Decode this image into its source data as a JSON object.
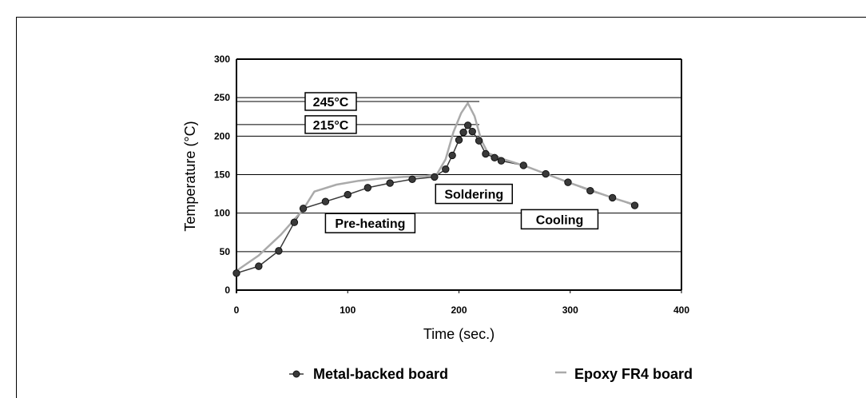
{
  "figure_heading": "",
  "chart_data": {
    "type": "line",
    "xlabel": "Time (sec.)",
    "ylabel": "Temperature (°C)",
    "xlim": [
      0,
      400
    ],
    "ylim": [
      0,
      300
    ],
    "xticks": [
      0,
      100,
      200,
      300,
      400
    ],
    "yticks": [
      0,
      50,
      100,
      150,
      200,
      250,
      300
    ],
    "grid": "horizontal",
    "legend_position": "bottom",
    "series": [
      {
        "name": "Metal-backed board",
        "color": "#3a3a3a",
        "marker": "circle",
        "points": [
          [
            0,
            22
          ],
          [
            20,
            31
          ],
          [
            38,
            51
          ],
          [
            52,
            88
          ],
          [
            60,
            106
          ],
          [
            80,
            115
          ],
          [
            100,
            124
          ],
          [
            118,
            133
          ],
          [
            138,
            139
          ],
          [
            158,
            144
          ],
          [
            178,
            147
          ],
          [
            188,
            157
          ],
          [
            194,
            175
          ],
          [
            200,
            195
          ],
          [
            204,
            205
          ],
          [
            208,
            214
          ],
          [
            212,
            206
          ],
          [
            218,
            194
          ],
          [
            224,
            177
          ],
          [
            232,
            172
          ],
          [
            238,
            168
          ],
          [
            258,
            162
          ],
          [
            278,
            151
          ],
          [
            298,
            140
          ],
          [
            318,
            129
          ],
          [
            338,
            120
          ],
          [
            358,
            110
          ]
        ]
      },
      {
        "name": "Epoxy FR4 board",
        "color": "#aaaaaa",
        "marker": "none",
        "points": [
          [
            0,
            25
          ],
          [
            20,
            45
          ],
          [
            40,
            72
          ],
          [
            60,
            105
          ],
          [
            70,
            128
          ],
          [
            90,
            137
          ],
          [
            110,
            142
          ],
          [
            130,
            145
          ],
          [
            150,
            147
          ],
          [
            170,
            148
          ],
          [
            180,
            150
          ],
          [
            188,
            170
          ],
          [
            195,
            205
          ],
          [
            202,
            230
          ],
          [
            208,
            243
          ],
          [
            214,
            226
          ],
          [
            220,
            195
          ],
          [
            226,
            178
          ],
          [
            240,
            170
          ],
          [
            260,
            161
          ],
          [
            280,
            150
          ],
          [
            300,
            139
          ],
          [
            320,
            129
          ],
          [
            340,
            119
          ],
          [
            360,
            110
          ]
        ]
      }
    ],
    "reference_lines": [
      {
        "label": "245°C",
        "y": 245
      },
      {
        "label": "215°C",
        "y": 215
      }
    ],
    "annotations": [
      {
        "text": "Pre-heating",
        "x": 80,
        "y": 87
      },
      {
        "text": "Soldering",
        "x": 179,
        "y": 125
      },
      {
        "text": "Cooling",
        "x": 256,
        "y": 92
      }
    ]
  }
}
